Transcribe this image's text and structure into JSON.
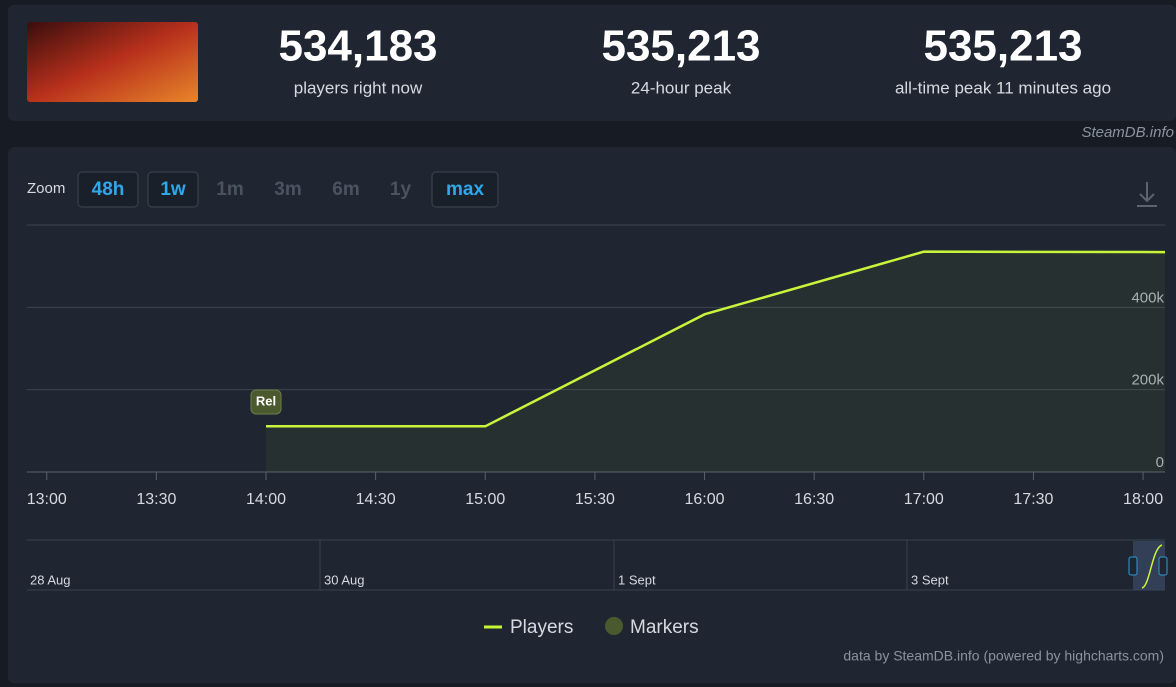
{
  "header": {
    "stats": [
      {
        "value": "534,183",
        "label": "players right now"
      },
      {
        "value": "535,213",
        "label": "24-hour peak"
      },
      {
        "value": "535,213",
        "label": "all-time peak 11 minutes ago"
      }
    ],
    "source": "SteamDB.info"
  },
  "chart_data": {
    "type": "line",
    "zoom_label": "Zoom",
    "zoom_buttons": [
      {
        "label": "48h",
        "enabled": true
      },
      {
        "label": "1w",
        "enabled": true
      },
      {
        "label": "1m",
        "enabled": false
      },
      {
        "label": "3m",
        "enabled": false
      },
      {
        "label": "6m",
        "enabled": false
      },
      {
        "label": "1y",
        "enabled": false
      },
      {
        "label": "max",
        "enabled": true
      }
    ],
    "series": [
      {
        "name": "Players",
        "color": "#c8f53c",
        "x": [
          14,
          15,
          16,
          17,
          18.1
        ],
        "values": [
          111000,
          111000,
          383000,
          535213,
          534183
        ]
      }
    ],
    "markers": {
      "name": "Markers",
      "color": "#4a5a2e"
    },
    "annotations": [
      {
        "x": 14,
        "label": "Rel"
      }
    ],
    "xlim": [
      12.91,
      18.1
    ],
    "xticks": [
      {
        "value": 13,
        "label": "13:00"
      },
      {
        "value": 13.5,
        "label": "13:30"
      },
      {
        "value": 14,
        "label": "14:00"
      },
      {
        "value": 14.5,
        "label": "14:30"
      },
      {
        "value": 15,
        "label": "15:00"
      },
      {
        "value": 15.5,
        "label": "15:30"
      },
      {
        "value": 16,
        "label": "16:00"
      },
      {
        "value": 16.5,
        "label": "16:30"
      },
      {
        "value": 17,
        "label": "17:00"
      },
      {
        "value": 17.5,
        "label": "17:30"
      },
      {
        "value": 18,
        "label": "18:00"
      }
    ],
    "ylim": [
      0,
      600000
    ],
    "yticks": [
      0,
      {
        "value": 200000,
        "label": "200k"
      },
      {
        "value": 400000,
        "label": "400k"
      }
    ],
    "grid": true,
    "navigator_labels": [
      "28 Aug",
      "30 Aug",
      "1 Sept",
      "3 Sept"
    ],
    "credit": "data by SteamDB.info (powered by highcharts.com)"
  }
}
